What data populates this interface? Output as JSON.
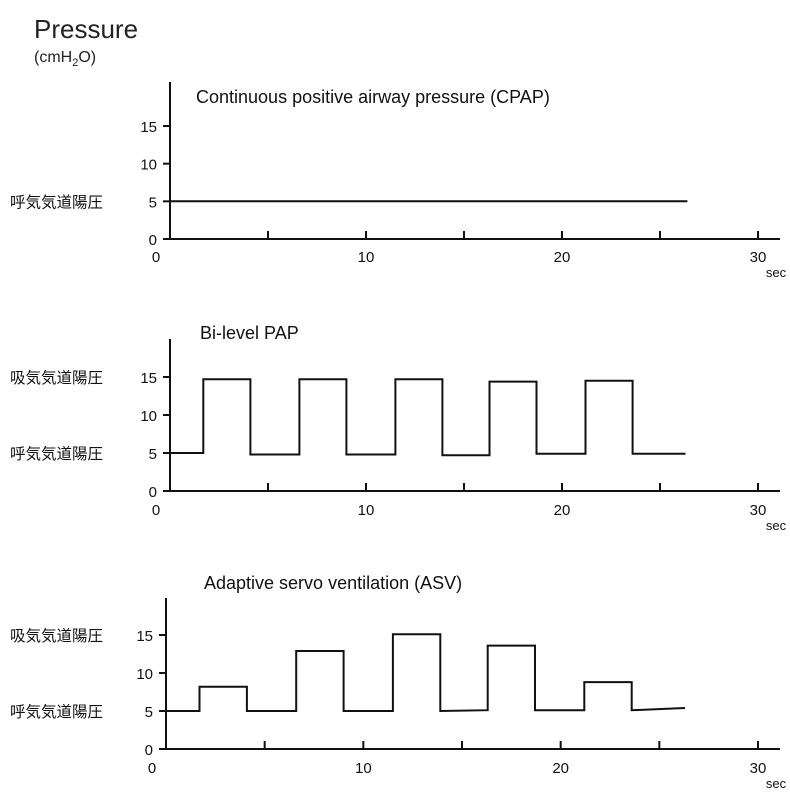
{
  "header": {
    "title": "Pressure",
    "unit_prefix": "(cmH",
    "unit_sub": "2",
    "unit_suffix": "O)"
  },
  "chart_data": [
    {
      "type": "line",
      "title": "Continuous positive airway pressure (CPAP)",
      "x_unit": "sec",
      "xlim": [
        0,
        30
      ],
      "ylim": [
        0,
        18
      ],
      "x_ticks": [
        0,
        10,
        20,
        30
      ],
      "y_ticks": [
        0,
        5,
        10,
        15
      ],
      "annotations": [
        {
          "text": "呼気気道陽圧",
          "y": 5
        }
      ],
      "series": [
        {
          "x": [
            0,
            26.4
          ],
          "y": [
            5,
            5
          ]
        }
      ]
    },
    {
      "type": "line",
      "title": "Bi-level PAP",
      "x_unit": "sec",
      "xlim": [
        0,
        30
      ],
      "ylim": [
        0,
        18
      ],
      "x_ticks": [
        0,
        10,
        20,
        30
      ],
      "y_ticks": [
        0,
        5,
        10,
        15
      ],
      "annotations": [
        {
          "text": "吸気気道陽圧",
          "y": 15
        },
        {
          "text": "呼気気道陽圧",
          "y": 5
        }
      ],
      "series": [
        {
          "x": [
            0,
            1.7,
            1.7,
            4.1,
            4.1,
            6.6,
            6.6,
            9.0,
            9.0,
            11.5,
            11.5,
            13.9,
            13.9,
            16.3,
            16.3,
            18.7,
            18.7,
            21.2,
            21.2,
            23.6,
            23.6,
            26.3
          ],
          "y": [
            5,
            5,
            14.7,
            14.7,
            4.8,
            4.8,
            14.7,
            14.7,
            4.8,
            4.8,
            14.7,
            14.7,
            4.7,
            4.7,
            14.4,
            14.4,
            4.9,
            4.9,
            14.5,
            14.5,
            4.9,
            4.9
          ]
        }
      ]
    },
    {
      "type": "line",
      "title": "Adaptive servo ventilation  (ASV)",
      "x_unit": "sec",
      "xlim": [
        0,
        30
      ],
      "ylim": [
        0,
        18
      ],
      "x_ticks": [
        0,
        10,
        20,
        30
      ],
      "y_ticks": [
        0,
        5,
        10,
        15
      ],
      "annotations": [
        {
          "text": "吸気気道陽圧",
          "y": 15
        },
        {
          "text": "呼気気道陽圧",
          "y": 5
        }
      ],
      "series": [
        {
          "x": [
            0,
            1.7,
            1.7,
            4.1,
            4.1,
            6.6,
            6.6,
            9.0,
            9.0,
            11.5,
            11.5,
            13.9,
            13.9,
            16.3,
            16.3,
            18.7,
            18.7,
            21.2,
            21.2,
            23.6,
            23.6,
            26.3
          ],
          "y": [
            5,
            5,
            8.2,
            8.2,
            5,
            5,
            12.9,
            12.9,
            5,
            5,
            15.1,
            15.1,
            5,
            5.1,
            13.6,
            13.6,
            5.1,
            5.1,
            8.8,
            8.8,
            5.1,
            5.4
          ]
        }
      ]
    }
  ]
}
